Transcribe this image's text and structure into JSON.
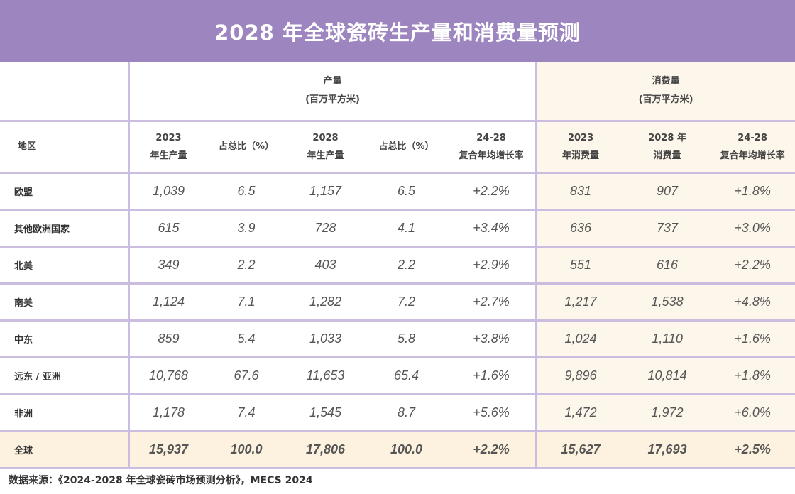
{
  "title": "2028 年全球瓷砖生产量和消费量预测",
  "groups": {
    "production": {
      "line1": "产量",
      "line2": "(百万平方米)"
    },
    "consumption": {
      "line1": "消费量",
      "line2": "(百万平方米)"
    }
  },
  "columns": {
    "region": "地区",
    "p2023": {
      "l1": "2023",
      "l2": "年生产量"
    },
    "share1": "占总比（%）",
    "p2028": {
      "l1": "2028",
      "l2": "年生产量"
    },
    "share2": "占总比（%）",
    "pcagr": {
      "l1": "24-28",
      "l2": "复合年均增长率"
    },
    "c2023": {
      "l1": "2023",
      "l2": "年消费量"
    },
    "c2028": {
      "l1": "2028 年",
      "l2": "消费量"
    },
    "ccagr": {
      "l1": "24-28",
      "l2": "复合年均增长率"
    }
  },
  "rows": [
    [
      "欧盟",
      "1,039",
      "6.5",
      "1,157",
      "6.5",
      "+2.2%",
      "831",
      "907",
      "+1.8%"
    ],
    [
      "其他欧洲国家",
      "615",
      "3.9",
      "728",
      "4.1",
      "+3.4%",
      "636",
      "737",
      "+3.0%"
    ],
    [
      "北美",
      "349",
      "2.2",
      "403",
      "2.2",
      "+2.9%",
      "551",
      "616",
      "+2.2%"
    ],
    [
      "南美",
      "1,124",
      "7.1",
      "1,282",
      "7.2",
      "+2.7%",
      "1,217",
      "1,538",
      "+4.8%"
    ],
    [
      "中东",
      "859",
      "5.4",
      "1,033",
      "5.8",
      "+3.8%",
      "1,024",
      "1,110",
      "+1.6%"
    ],
    [
      "远东 / 亚洲",
      "10,768",
      "67.6",
      "11,653",
      "65.4",
      "+1.6%",
      "9,896",
      "10,814",
      "+1.8%"
    ],
    [
      "非洲",
      "1,178",
      "7.4",
      "1,545",
      "8.7",
      "+5.6%",
      "1,472",
      "1,972",
      "+6.0%"
    ],
    [
      "全球",
      "15,937",
      "100.0",
      "17,806",
      "100.0",
      "+2.2%",
      "15,627",
      "17,693",
      "+2.5%"
    ]
  ],
  "source": "数据来源：《2024-2028 年全球瓷砖市场预测分析》，MECS 2024",
  "colors": {
    "header": "#9d86bf",
    "consumption_bg": "#fdf6ea",
    "total_bg": "#fdf2df",
    "rule": "#cbbde0"
  }
}
